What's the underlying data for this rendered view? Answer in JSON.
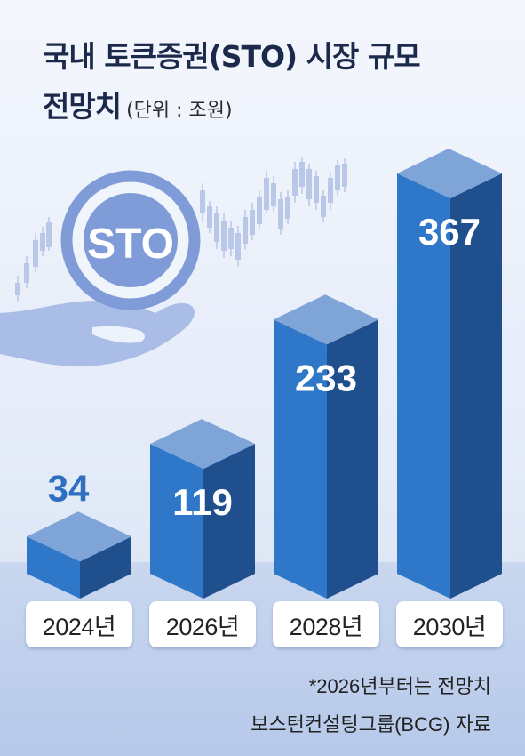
{
  "title": {
    "line1": "국내 토큰증권(STO) 시장 규모",
    "line2": "전망치",
    "unit": "(단위 : 조원)"
  },
  "illustration": {
    "coin_text": "STO",
    "icons": [
      "coin-icon",
      "hand-icon",
      "candlestick-icon"
    ],
    "colors": {
      "coin": "#7f9cd8",
      "hand": "#a9bde6"
    }
  },
  "chart_data": {
    "type": "bar",
    "title": "국내 토큰증권(STO) 시장 규모 전망치",
    "unit": "(단위 : 조원)",
    "categories": [
      "2024년",
      "2026년",
      "2028년",
      "2030년"
    ],
    "values": [
      34,
      119,
      233,
      367
    ],
    "value_labels": [
      "34",
      "119",
      "233",
      "367"
    ],
    "ylim": [
      0,
      367
    ],
    "grid": false,
    "legend": "none",
    "colors": {
      "front": "#2f78c9",
      "side": "#1f4f8d",
      "top": "#7ea4d8",
      "first_value_label": "#2f6fbf",
      "inside_value_label": "#ffffff"
    }
  },
  "notes": {
    "forecast": "*2026년부터는 전망치",
    "source": "보스턴컨설팅그룹(BCG) 자료"
  }
}
